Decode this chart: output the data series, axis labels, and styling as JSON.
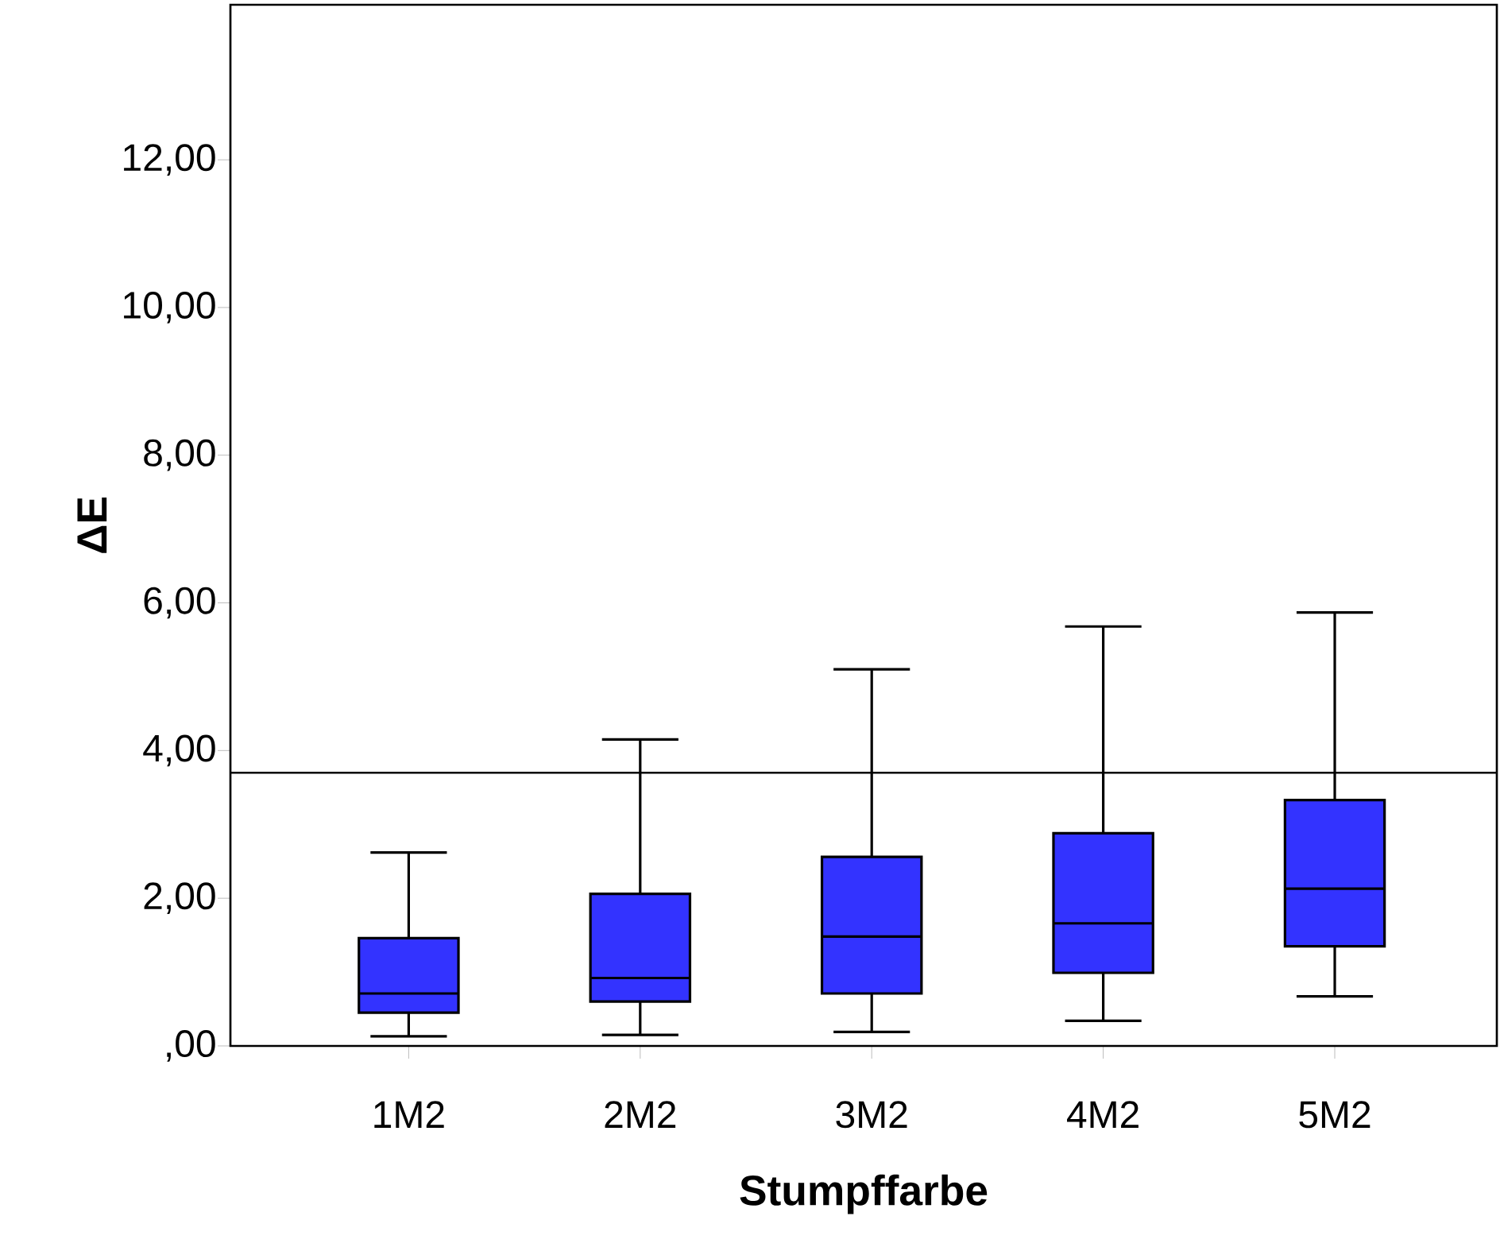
{
  "chart_data": {
    "type": "box",
    "xlabel": "Stumpffarbe",
    "ylabel": "ΔE",
    "categories": [
      "1M2",
      "2M2",
      "3M2",
      "4M2",
      "5M2"
    ],
    "color": "#3333ff",
    "boxes": [
      {
        "low": 0.13,
        "q1": 0.45,
        "median": 0.71,
        "q3": 1.46,
        "high": 2.62
      },
      {
        "low": 0.15,
        "q1": 0.6,
        "median": 0.92,
        "q3": 2.06,
        "high": 4.15
      },
      {
        "low": 0.19,
        "q1": 0.71,
        "median": 1.48,
        "q3": 2.56,
        "high": 5.1
      },
      {
        "low": 0.34,
        "q1": 0.99,
        "median": 1.66,
        "q3": 2.88,
        "high": 5.68
      },
      {
        "low": 0.67,
        "q1": 1.35,
        "median": 2.13,
        "q3": 3.33,
        "high": 5.87
      }
    ],
    "ylim": [
      0,
      14.1
    ],
    "yticks": [
      {
        "value": 0,
        "label": ",00"
      },
      {
        "value": 2,
        "label": "2,00"
      },
      {
        "value": 4,
        "label": "4,00"
      },
      {
        "value": 6,
        "label": "6,00"
      },
      {
        "value": 8,
        "label": "8,00"
      },
      {
        "value": 10,
        "label": "10,00"
      },
      {
        "value": 12,
        "label": "12,00"
      }
    ],
    "ref_lines": [
      {
        "axis": "y",
        "value": 3.7
      }
    ],
    "grid": false
  }
}
